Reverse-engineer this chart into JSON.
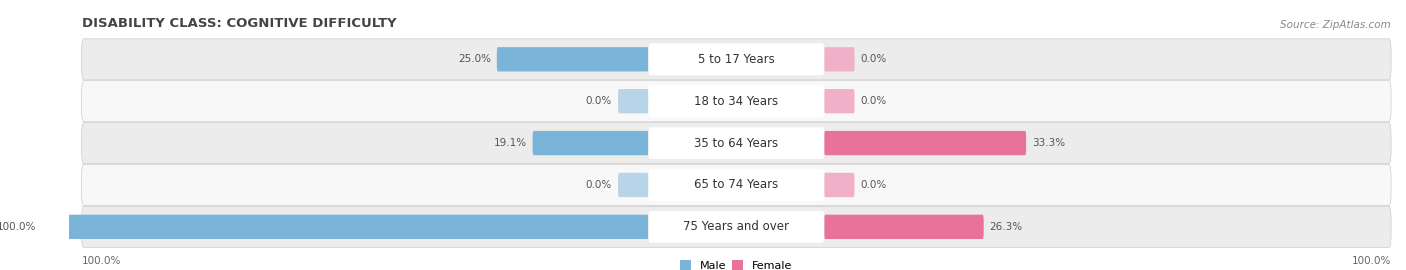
{
  "title": "DISABILITY CLASS: COGNITIVE DIFFICULTY",
  "source": "Source: ZipAtlas.com",
  "categories": [
    "5 to 17 Years",
    "18 to 34 Years",
    "35 to 64 Years",
    "65 to 74 Years",
    "75 Years and over"
  ],
  "male_values": [
    25.0,
    0.0,
    19.1,
    0.0,
    100.0
  ],
  "female_values": [
    0.0,
    0.0,
    33.3,
    0.0,
    26.3
  ],
  "male_color": "#7ab4d8",
  "female_color": "#e8729a",
  "male_color_light": "#b8d4e8",
  "female_color_light": "#f0b0c8",
  "row_colors": [
    "#ececec",
    "#f8f8f8",
    "#ececec",
    "#f8f8f8",
    "#ececec"
  ],
  "label_bg_color": "#ffffff",
  "max_val": 100.0,
  "title_fontsize": 9.5,
  "label_fontsize": 8.5,
  "value_fontsize": 7.5,
  "source_fontsize": 7.5,
  "legend_fontsize": 8,
  "bar_height": 0.58,
  "stub_size": 5.0,
  "title_color": "#444444",
  "value_color": "#555555",
  "source_color": "#888888"
}
